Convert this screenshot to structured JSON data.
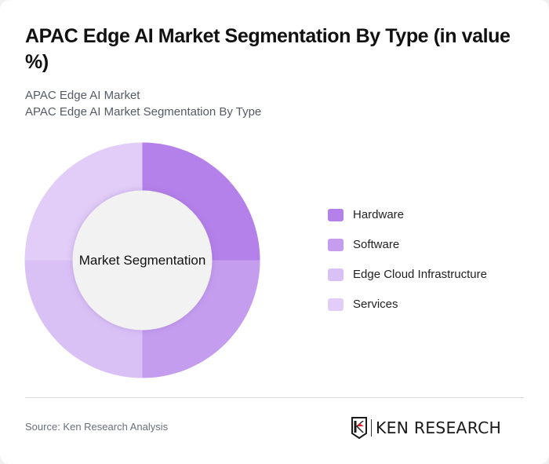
{
  "header": {
    "title": "APAC Edge AI Market Segmentation By Type (in value %)",
    "subtitle_1": "APAC Edge AI Market",
    "subtitle_2": "APAC Edge AI Market Segmentation By Type"
  },
  "chart": {
    "center_label": "Market Segmentation"
  },
  "legend": {
    "items": [
      {
        "label": "Hardware",
        "color": "#b480e9"
      },
      {
        "label": "Software",
        "color": "#c49dee"
      },
      {
        "label": "Edge Cloud Infrastructure",
        "color": "#d9c1f5"
      },
      {
        "label": "Services",
        "color": "#e1cdf7"
      }
    ]
  },
  "footer": {
    "source": "Source: Ken Research Analysis",
    "logo_text": "KEN RESEARCH"
  },
  "chart_data": {
    "type": "pie",
    "subtype": "donut",
    "title": "APAC Edge AI Market Segmentation By Type (in value %)",
    "subtitle": [
      "APAC Edge AI Market",
      "APAC Edge AI Market Segmentation By Type"
    ],
    "center_label": "Market Segmentation",
    "categories": [
      "Hardware",
      "Software",
      "Edge Cloud Infrastructure",
      "Services"
    ],
    "values": [
      25,
      25,
      25,
      25
    ],
    "colors": [
      "#b480e9",
      "#c49dee",
      "#d9c1f5",
      "#e1cdf7"
    ],
    "legend_position": "right",
    "source": "Source: Ken Research Analysis"
  }
}
